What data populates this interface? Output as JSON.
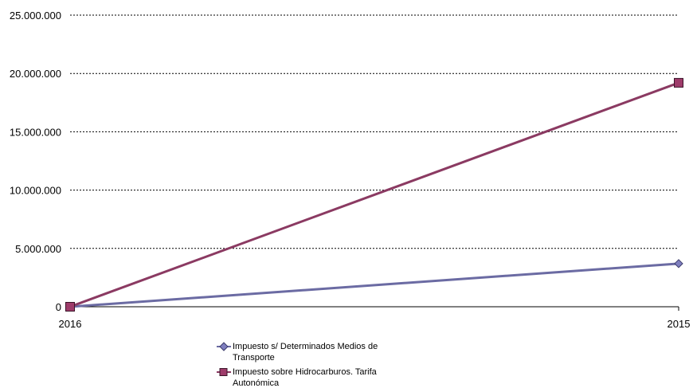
{
  "chart_data": {
    "type": "line",
    "x": [
      "2016",
      "2015"
    ],
    "y_ticks": [
      "25.000.000",
      "20.000.000",
      "15.000.000",
      "10.000.000",
      "5.000.000",
      "0"
    ],
    "ylim": [
      0,
      25000000
    ],
    "grid": true,
    "legend_position": "bottom",
    "series": [
      {
        "name": "Impuesto s/ Determinados Medios de Transporte",
        "values": [
          0,
          3700000
        ],
        "color": "#6B6BA3",
        "marker_color": "#7F7FBF",
        "marker": "diamond"
      },
      {
        "name": "Impuesto sobre Hidrocarburos. Tarifa Autonómica",
        "values": [
          0,
          19200000
        ],
        "color": "#8B3A62",
        "marker_color": "#9E3B6A",
        "marker": "square"
      }
    ]
  }
}
